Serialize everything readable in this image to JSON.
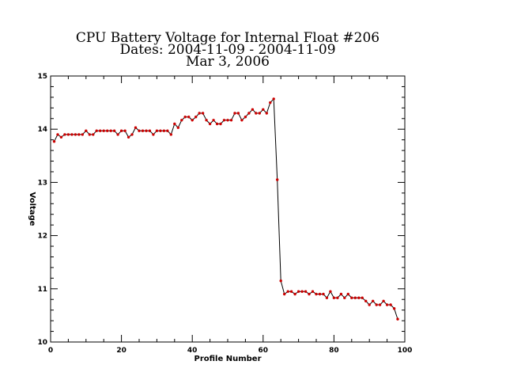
{
  "chart_data": {
    "type": "line",
    "title_lines": [
      "CPU Battery Voltage for Internal Float #206",
      "Dates:  2004-11-09 -  2004-11-09",
      "Mar  3, 2006"
    ],
    "xlabel": "Profile Number",
    "ylabel": "Voltage",
    "xlim": [
      0,
      100
    ],
    "ylim": [
      10,
      15
    ],
    "xticks": [
      0,
      20,
      40,
      60,
      80,
      100
    ],
    "yticks": [
      10,
      11,
      12,
      13,
      14,
      15
    ],
    "grid": false,
    "line_color": "#000000",
    "marker_color": "#cc0000",
    "x": [
      1,
      2,
      3,
      4,
      5,
      6,
      7,
      8,
      9,
      10,
      11,
      12,
      13,
      14,
      15,
      16,
      17,
      18,
      19,
      20,
      21,
      22,
      23,
      24,
      25,
      26,
      27,
      28,
      29,
      30,
      31,
      32,
      33,
      34,
      35,
      36,
      37,
      38,
      39,
      40,
      41,
      42,
      43,
      44,
      45,
      46,
      47,
      48,
      49,
      50,
      51,
      52,
      53,
      54,
      55,
      56,
      57,
      58,
      59,
      60,
      61,
      62,
      63,
      64,
      65,
      66,
      67,
      68,
      69,
      70,
      71,
      72,
      73,
      74,
      75,
      76,
      77,
      78,
      79,
      80,
      81,
      82,
      83,
      84,
      85,
      86,
      87,
      88,
      89,
      90,
      91,
      92,
      93,
      94,
      95,
      96,
      97,
      98
    ],
    "values": [
      13.77,
      13.9,
      13.85,
      13.9,
      13.9,
      13.9,
      13.9,
      13.9,
      13.9,
      13.97,
      13.9,
      13.9,
      13.97,
      13.97,
      13.97,
      13.97,
      13.97,
      13.97,
      13.9,
      13.97,
      13.97,
      13.85,
      13.9,
      14.03,
      13.97,
      13.97,
      13.97,
      13.97,
      13.9,
      13.97,
      13.97,
      13.97,
      13.97,
      13.9,
      14.1,
      14.03,
      14.17,
      14.23,
      14.23,
      14.17,
      14.23,
      14.3,
      14.3,
      14.17,
      14.1,
      14.17,
      14.1,
      14.1,
      14.17,
      14.17,
      14.17,
      14.3,
      14.3,
      14.17,
      14.23,
      14.3,
      14.37,
      14.3,
      14.3,
      14.37,
      14.3,
      14.5,
      14.57,
      13.05,
      11.15,
      10.9,
      10.95,
      10.95,
      10.9,
      10.95,
      10.95,
      10.95,
      10.9,
      10.95,
      10.9,
      10.9,
      10.9,
      10.83,
      10.95,
      10.83,
      10.83,
      10.9,
      10.83,
      10.9,
      10.83,
      10.83,
      10.83,
      10.83,
      10.77,
      10.7,
      10.77,
      10.7,
      10.7,
      10.77,
      10.7,
      10.7,
      10.63,
      10.43
    ]
  }
}
